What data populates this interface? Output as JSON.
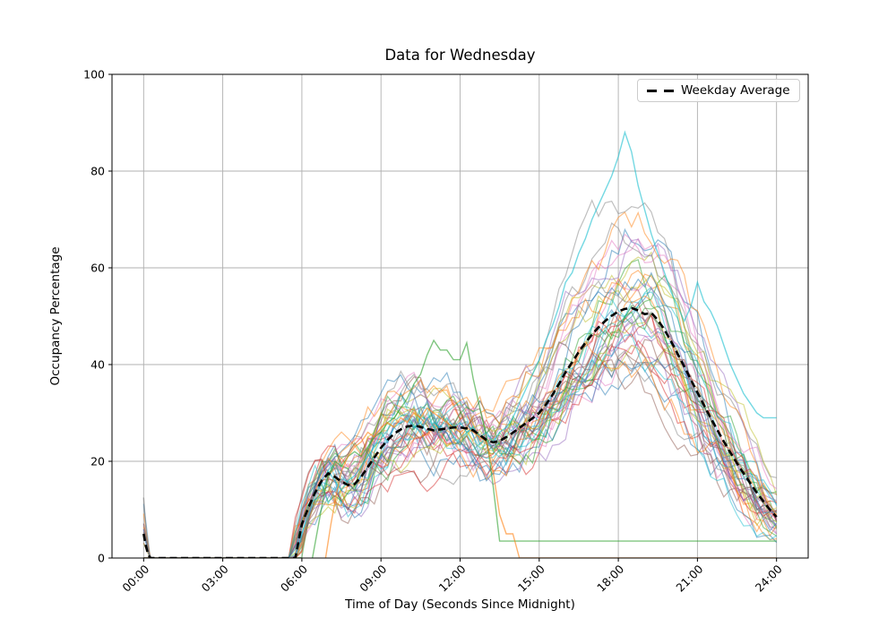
{
  "figure": {
    "background": "#ffffff"
  },
  "chart_data": {
    "type": "line",
    "title": "Data for Wednesday",
    "xlabel": "Time of Day (Seconds Since Midnight)",
    "ylabel": "Occupancy Percentage",
    "grid": true,
    "grid_color": "#b0b0b0",
    "spine_color": "#000000",
    "xlim": [
      -1.2,
      25.2
    ],
    "ylim": [
      0,
      100
    ],
    "xticks": {
      "hours": [
        0,
        3,
        6,
        9,
        12,
        15,
        18,
        21,
        24
      ],
      "labels": [
        "00:00",
        "03:00",
        "06:00",
        "09:00",
        "12:00",
        "15:00",
        "18:00",
        "21:00",
        "24:00"
      ]
    },
    "yticks": [
      0,
      20,
      40,
      60,
      80,
      100
    ],
    "legend": {
      "position": "upper right",
      "entries": [
        {
          "label": "Weekday Average",
          "style": "dashed",
          "color": "#000000"
        }
      ]
    },
    "average_series": {
      "name": "Weekday Average",
      "color": "#000000",
      "line_width": 2.6,
      "dash": [
        8,
        4.5
      ],
      "points": [
        [
          0,
          5
        ],
        [
          0.083,
          2.5
        ],
        [
          0.167,
          0.8
        ],
        [
          0.25,
          0
        ],
        [
          5.75,
          0
        ],
        [
          6,
          7
        ],
        [
          6.25,
          10.5
        ],
        [
          6.5,
          13.5
        ],
        [
          6.75,
          16
        ],
        [
          7,
          17.5
        ],
        [
          7.25,
          16.8
        ],
        [
          7.5,
          15.8
        ],
        [
          7.75,
          15.1
        ],
        [
          8,
          15.3
        ],
        [
          8.25,
          16.8
        ],
        [
          8.5,
          18.8
        ],
        [
          8.75,
          20.8
        ],
        [
          9,
          22.8
        ],
        [
          9.25,
          24.4
        ],
        [
          9.5,
          25.7
        ],
        [
          9.75,
          26.6
        ],
        [
          10,
          27.2
        ],
        [
          10.25,
          27.4
        ],
        [
          10.5,
          27.1
        ],
        [
          10.75,
          26.7
        ],
        [
          11,
          26.4
        ],
        [
          11.25,
          26.6
        ],
        [
          11.5,
          26.8
        ],
        [
          11.75,
          27
        ],
        [
          12,
          27
        ],
        [
          12.25,
          26.8
        ],
        [
          12.5,
          26.4
        ],
        [
          12.75,
          25.4
        ],
        [
          13,
          24.4
        ],
        [
          13.25,
          23.9
        ],
        [
          13.5,
          24.2
        ],
        [
          13.75,
          25
        ],
        [
          14,
          25.9
        ],
        [
          14.25,
          26.9
        ],
        [
          14.5,
          27.9
        ],
        [
          14.75,
          28.9
        ],
        [
          15,
          30
        ],
        [
          15.25,
          31.7
        ],
        [
          15.5,
          33.7
        ],
        [
          15.75,
          36
        ],
        [
          16,
          38.4
        ],
        [
          16.25,
          40.5
        ],
        [
          16.5,
          42.6
        ],
        [
          16.75,
          44.5
        ],
        [
          17,
          46.2
        ],
        [
          17.25,
          47.7
        ],
        [
          17.5,
          49
        ],
        [
          17.75,
          50.1
        ],
        [
          18,
          51
        ],
        [
          18.25,
          51.5
        ],
        [
          18.5,
          51.7
        ],
        [
          18.75,
          51.2
        ],
        [
          19,
          50.4
        ],
        [
          19.25,
          50.7
        ],
        [
          19.5,
          49.2
        ],
        [
          19.75,
          47.2
        ],
        [
          20,
          44.8
        ],
        [
          20.25,
          42.2
        ],
        [
          20.5,
          39.6
        ],
        [
          20.75,
          36.9
        ],
        [
          21,
          34.2
        ],
        [
          21.25,
          31.6
        ],
        [
          21.5,
          29
        ],
        [
          21.75,
          26.5
        ],
        [
          22,
          24.1
        ],
        [
          22.25,
          21.8
        ],
        [
          22.5,
          19.6
        ],
        [
          22.75,
          17.5
        ],
        [
          23,
          15.5
        ],
        [
          23.25,
          13.5
        ],
        [
          23.5,
          11.7
        ],
        [
          23.75,
          10
        ],
        [
          24,
          8.5
        ]
      ]
    },
    "individual_traces": {
      "count": 42,
      "alpha": 0.5,
      "stroke_width": 1.2,
      "colors": [
        "#1f77b4",
        "#ff7f0e",
        "#2ca02c",
        "#d62728",
        "#9467bd",
        "#8c564b",
        "#e377c2",
        "#7f7f7f",
        "#bcbd22",
        "#17becf"
      ],
      "seed": 11,
      "amp_min": 0.75,
      "amp_span": 0.6,
      "noise_decay": 0.8,
      "noise_step": 7,
      "spike_probability": 0.32,
      "spike_max": 9,
      "rise_shift_span": 0.5
    },
    "highlight_traces": [
      {
        "name": "cyan-high-peak",
        "color": "#17becf",
        "points": [
          [
            5.75,
            0
          ],
          [
            6,
            5
          ],
          [
            6.25,
            9
          ],
          [
            6.5,
            13
          ],
          [
            6.75,
            16
          ],
          [
            7,
            18
          ],
          [
            7.25,
            16
          ],
          [
            7.5,
            14
          ],
          [
            7.75,
            16
          ],
          [
            8,
            17
          ],
          [
            8.25,
            19
          ],
          [
            8.5,
            21
          ],
          [
            8.75,
            23
          ],
          [
            9,
            26
          ],
          [
            9.25,
            24
          ],
          [
            9.5,
            27
          ],
          [
            9.75,
            28
          ],
          [
            10,
            29
          ],
          [
            10.25,
            27
          ],
          [
            10.5,
            28
          ],
          [
            10.75,
            26
          ],
          [
            11,
            28
          ],
          [
            11.25,
            27
          ],
          [
            11.5,
            29
          ],
          [
            11.75,
            27
          ],
          [
            12,
            28
          ],
          [
            12.25,
            26
          ],
          [
            12.5,
            27
          ],
          [
            12.75,
            25
          ],
          [
            13,
            26
          ],
          [
            13.25,
            24
          ],
          [
            13.5,
            26
          ],
          [
            13.75,
            27
          ],
          [
            14,
            29
          ],
          [
            14.25,
            32
          ],
          [
            14.5,
            35
          ],
          [
            14.75,
            38
          ],
          [
            15,
            41
          ],
          [
            15.25,
            45
          ],
          [
            15.5,
            48
          ],
          [
            15.75,
            52
          ],
          [
            16,
            57
          ],
          [
            16.25,
            59
          ],
          [
            16.5,
            63
          ],
          [
            16.75,
            66
          ],
          [
            17,
            70
          ],
          [
            17.25,
            73
          ],
          [
            17.5,
            76
          ],
          [
            17.75,
            79
          ],
          [
            18,
            83
          ],
          [
            18.25,
            88
          ],
          [
            18.5,
            84
          ],
          [
            18.75,
            77
          ],
          [
            19,
            72
          ],
          [
            19.25,
            67
          ],
          [
            19.5,
            63
          ],
          [
            19.75,
            59
          ],
          [
            20,
            55
          ],
          [
            20.25,
            52
          ],
          [
            20.5,
            49
          ],
          [
            20.75,
            52
          ],
          [
            21,
            57
          ],
          [
            21.25,
            53
          ],
          [
            21.5,
            51
          ],
          [
            21.75,
            48
          ],
          [
            22,
            44
          ],
          [
            22.25,
            40
          ],
          [
            22.5,
            37
          ],
          [
            22.75,
            34
          ],
          [
            23,
            32
          ],
          [
            23.25,
            30
          ],
          [
            23.5,
            29
          ],
          [
            23.75,
            29
          ],
          [
            24,
            29
          ]
        ]
      },
      {
        "name": "green-dropout",
        "color": "#2ca02c",
        "points": [
          [
            6.4,
            0
          ],
          [
            6.6,
            6
          ],
          [
            6.8,
            12
          ],
          [
            7,
            17
          ],
          [
            7.25,
            20
          ],
          [
            7.5,
            19
          ],
          [
            7.75,
            21
          ],
          [
            8,
            22
          ],
          [
            8.25,
            21
          ],
          [
            8.5,
            23
          ],
          [
            8.75,
            25
          ],
          [
            9,
            26
          ],
          [
            9.25,
            28
          ],
          [
            9.5,
            29
          ],
          [
            9.75,
            31
          ],
          [
            10,
            33
          ],
          [
            10.25,
            36
          ],
          [
            10.5,
            38
          ],
          [
            10.75,
            42
          ],
          [
            11,
            45
          ],
          [
            11.25,
            43
          ],
          [
            11.5,
            43
          ],
          [
            11.75,
            41
          ],
          [
            12,
            41
          ],
          [
            12.25,
            44.5
          ],
          [
            12.5,
            37
          ],
          [
            12.75,
            31
          ],
          [
            13,
            25
          ],
          [
            13.25,
            15
          ],
          [
            13.5,
            3.5
          ],
          [
            24,
            3.5
          ]
        ]
      },
      {
        "name": "orange-dropout",
        "color": "#ff7f0e",
        "points": [
          [
            6.9,
            0
          ],
          [
            7.1,
            7
          ],
          [
            7.3,
            13
          ],
          [
            7.5,
            18
          ],
          [
            7.75,
            21
          ],
          [
            8,
            23
          ],
          [
            8.25,
            24
          ],
          [
            8.5,
            26
          ],
          [
            8.75,
            25
          ],
          [
            9,
            27
          ],
          [
            9.25,
            28
          ],
          [
            9.5,
            27
          ],
          [
            9.75,
            29
          ],
          [
            10,
            28
          ],
          [
            10.25,
            30
          ],
          [
            10.5,
            29
          ],
          [
            10.75,
            31
          ],
          [
            11,
            30
          ],
          [
            11.25,
            29
          ],
          [
            11.5,
            28
          ],
          [
            11.75,
            27
          ],
          [
            12,
            26
          ],
          [
            12.25,
            27
          ],
          [
            12.5,
            26
          ],
          [
            12.75,
            25
          ],
          [
            13,
            24
          ],
          [
            13.25,
            18
          ],
          [
            13.5,
            9
          ],
          [
            13.75,
            5
          ],
          [
            14,
            5
          ],
          [
            14.25,
            0
          ],
          [
            24,
            0
          ]
        ]
      },
      {
        "name": "gray-midnight-spike",
        "color": "#7f7f7f",
        "points": [
          [
            0,
            12.5
          ],
          [
            0.1,
            5
          ],
          [
            0.2,
            1
          ],
          [
            0.3,
            0
          ],
          [
            5.75,
            0
          ]
        ]
      }
    ]
  }
}
